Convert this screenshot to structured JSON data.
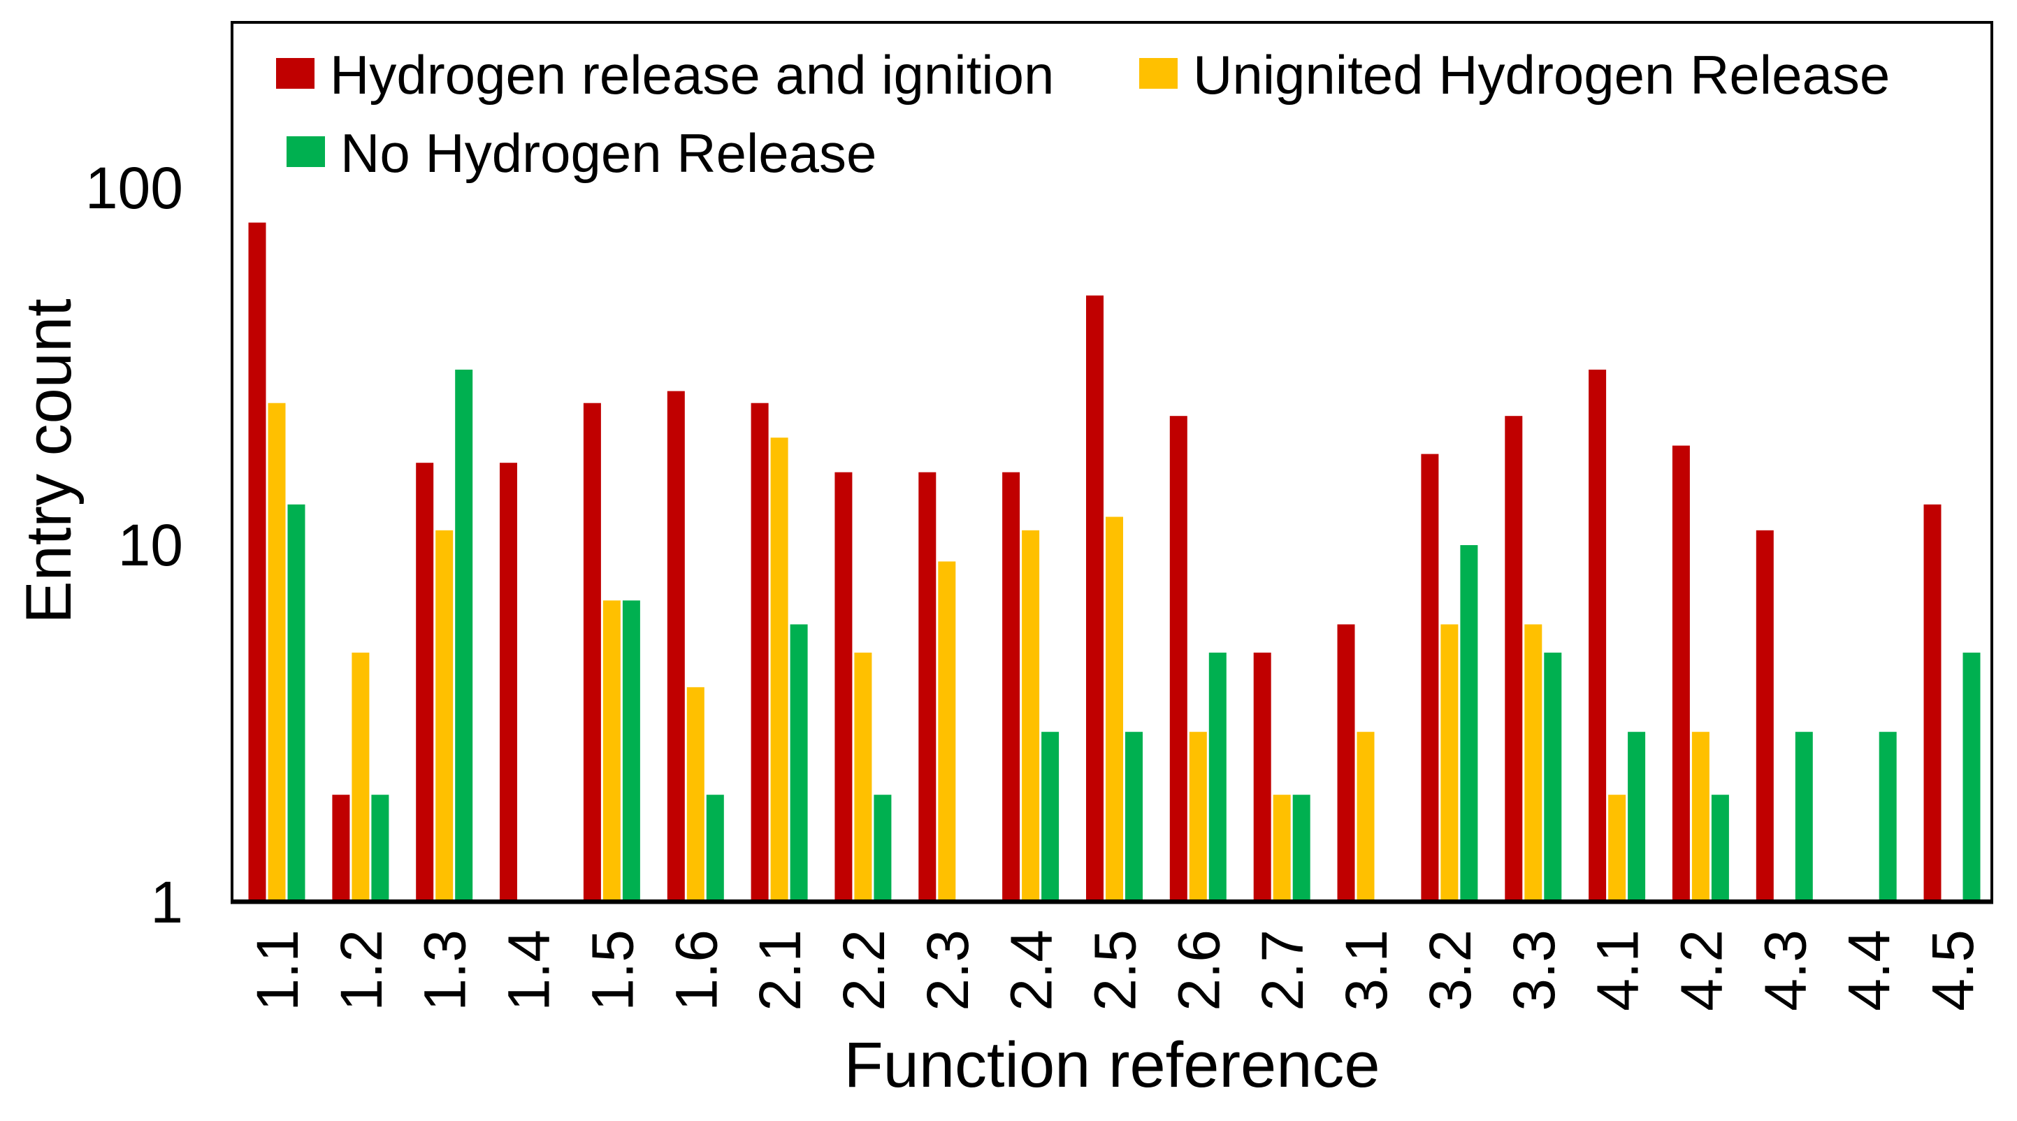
{
  "figure": {
    "background": "#ffffff",
    "border_color": "#000000",
    "text_color": "#000000"
  },
  "chart_data": {
    "type": "bar",
    "y_scale": "log",
    "xlabel": "Function reference",
    "ylabel": "Entry count",
    "ylim": [
      1,
      300
    ],
    "y_ticks": [
      "1",
      "10",
      "100"
    ],
    "grid": false,
    "legend_position": "top-left-inside",
    "categories": [
      "1.1",
      "1.2",
      "1.3",
      "1.4",
      "1.5",
      "1.6",
      "2.1",
      "2.2",
      "2.3",
      "2.4",
      "2.5",
      "2.6",
      "2.7",
      "3.1",
      "3.2",
      "3.3",
      "4.1",
      "4.2",
      "4.3",
      "4.4",
      "4.5"
    ],
    "series": [
      {
        "name": "Hydrogen release and ignition",
        "key": "ignited-release",
        "color": "#C00000",
        "values": [
          80,
          2,
          17,
          17,
          25,
          27,
          25,
          16,
          16,
          16,
          50,
          23,
          5,
          6,
          18,
          23,
          31,
          19,
          11,
          null,
          13
        ]
      },
      {
        "name": "Unignited Hydrogen Release",
        "key": "unignited-release",
        "color": "#FFC000",
        "values": [
          25,
          5,
          11,
          null,
          7,
          4,
          20,
          5,
          9,
          11,
          12,
          3,
          2,
          3,
          6,
          6,
          2,
          3,
          null,
          null,
          null
        ]
      },
      {
        "name": "No Hydrogen Release",
        "key": "no-release",
        "color": "#00B050",
        "values": [
          13,
          2,
          31,
          null,
          7,
          2,
          6,
          2,
          null,
          3,
          3,
          5,
          2,
          null,
          10,
          5,
          3,
          2,
          3,
          3,
          5
        ]
      }
    ]
  }
}
